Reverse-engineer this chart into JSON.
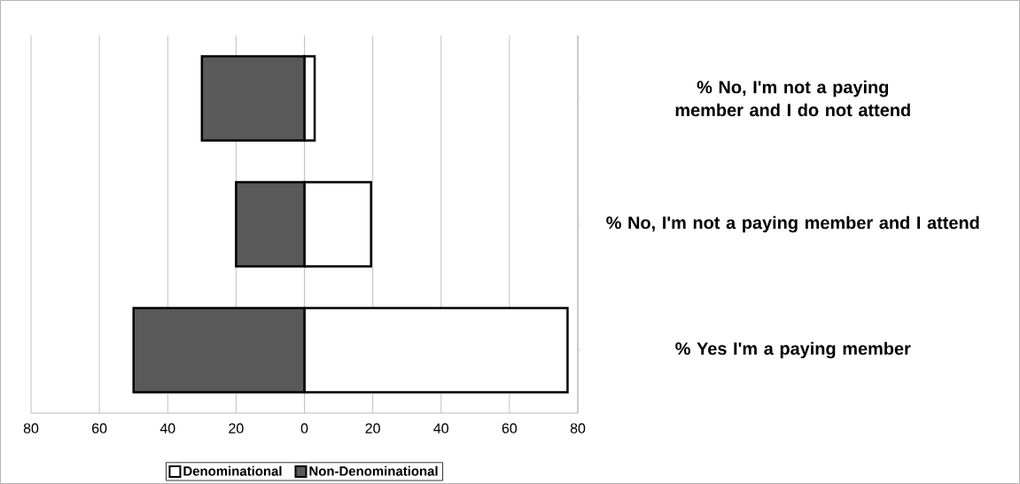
{
  "chart_data": {
    "type": "bar",
    "orientation": "horizontal",
    "categories": [
      "% No, I'm not a paying member and I do not attend",
      "% No, I'm not a paying member and I attend",
      "% Yes I'm a paying member"
    ],
    "series": [
      {
        "name": "Denominational",
        "color": "#ffffff",
        "values": [
          3,
          19.5,
          77
        ]
      },
      {
        "name": "Non-Denominational",
        "color": "#595959",
        "values": [
          -30,
          -20,
          -50
        ]
      }
    ],
    "xlim": [
      -80,
      80
    ],
    "xticks": [
      {
        "value": -80,
        "label": "80"
      },
      {
        "value": -60,
        "label": "60"
      },
      {
        "value": -40,
        "label": "40"
      },
      {
        "value": -20,
        "label": "20"
      },
      0,
      20,
      40,
      60,
      80
    ],
    "grid": "x",
    "legend": "bottom",
    "stacked": true
  }
}
